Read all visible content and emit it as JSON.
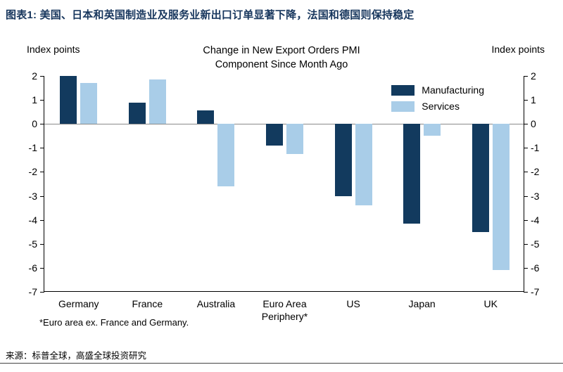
{
  "header": {
    "title": "图表1:  美国、日本和英国制造业及服务业新出口订单显著下降，法国和德国则保持稳定"
  },
  "chart_data": {
    "type": "bar",
    "title": "Change in New Export Orders PMI\nComponent Since Month Ago",
    "left_axis_label": "Index points",
    "right_axis_label": "Index points",
    "categories": [
      "Germany",
      "France",
      "Australia",
      "Euro Area\nPeriphery*",
      "US",
      "Japan",
      "UK"
    ],
    "series": [
      {
        "name": "Manufacturing",
        "color": "#123A5E",
        "values": [
          2.0,
          0.9,
          0.55,
          -0.9,
          -3.0,
          -4.15,
          -4.5
        ]
      },
      {
        "name": "Services",
        "color": "#A9CDE8",
        "values": [
          1.7,
          1.85,
          -2.6,
          -1.25,
          -3.4,
          -0.5,
          -6.1
        ]
      }
    ],
    "ylim": [
      -7,
      2
    ],
    "ytick_step": 1,
    "grid": false,
    "legend_position": "top-right",
    "zero_line_color": "#8a8a8a"
  },
  "footnote": "*Euro area ex. France and Germany.",
  "source": "来源：标普全球，高盛全球投资研究"
}
